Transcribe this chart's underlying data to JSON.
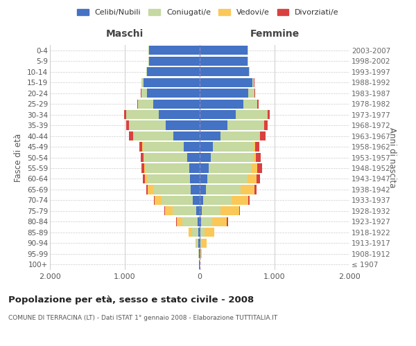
{
  "age_groups": [
    "100+",
    "95-99",
    "90-94",
    "85-89",
    "80-84",
    "75-79",
    "70-74",
    "65-69",
    "60-64",
    "55-59",
    "50-54",
    "45-49",
    "40-44",
    "35-39",
    "30-34",
    "25-29",
    "20-24",
    "15-19",
    "10-14",
    "5-9",
    "0-4"
  ],
  "birth_years": [
    "≤ 1907",
    "1908-1912",
    "1913-1917",
    "1918-1922",
    "1923-1927",
    "1928-1932",
    "1933-1937",
    "1938-1942",
    "1943-1947",
    "1948-1952",
    "1953-1957",
    "1958-1962",
    "1963-1967",
    "1968-1972",
    "1973-1977",
    "1978-1982",
    "1983-1987",
    "1988-1992",
    "1993-1997",
    "1998-2002",
    "2003-2007"
  ],
  "male_celibi": [
    5,
    10,
    15,
    20,
    30,
    50,
    90,
    120,
    130,
    140,
    170,
    210,
    350,
    450,
    550,
    620,
    700,
    750,
    700,
    680,
    680
  ],
  "male_coniugati": [
    2,
    8,
    30,
    80,
    200,
    310,
    420,
    500,
    560,
    580,
    570,
    550,
    530,
    490,
    430,
    200,
    80,
    30,
    10,
    5,
    5
  ],
  "male_vedovi": [
    1,
    5,
    15,
    50,
    80,
    100,
    90,
    70,
    40,
    20,
    10,
    5,
    5,
    5,
    3,
    2,
    1,
    0,
    0,
    0,
    0
  ],
  "male_divorziati": [
    0,
    0,
    0,
    2,
    5,
    10,
    15,
    20,
    30,
    35,
    40,
    45,
    55,
    40,
    30,
    10,
    5,
    2,
    1,
    0,
    0
  ],
  "female_celibi": [
    3,
    8,
    10,
    12,
    15,
    25,
    50,
    80,
    100,
    120,
    150,
    180,
    280,
    370,
    480,
    580,
    650,
    700,
    660,
    640,
    640
  ],
  "female_coniugati": [
    1,
    5,
    20,
    50,
    150,
    250,
    380,
    470,
    540,
    570,
    560,
    540,
    520,
    480,
    420,
    190,
    80,
    25,
    8,
    4,
    4
  ],
  "female_vedovi": [
    2,
    15,
    60,
    130,
    200,
    250,
    220,
    180,
    120,
    80,
    40,
    20,
    10,
    8,
    5,
    3,
    2,
    1,
    0,
    0,
    0
  ],
  "female_divorziati": [
    0,
    0,
    2,
    5,
    10,
    15,
    20,
    30,
    50,
    60,
    65,
    60,
    70,
    50,
    30,
    12,
    5,
    2,
    1,
    0,
    0
  ],
  "colors": {
    "celibi": "#4472c4",
    "coniugati": "#c5d9a0",
    "vedovi": "#fac858",
    "divorziati": "#d94040"
  },
  "title": "Popolazione per età, sesso e stato civile - 2008",
  "subtitle": "COMUNE DI TERRACINA (LT) - Dati ISTAT 1° gennaio 2008 - Elaborazione TUTTITALIA.IT",
  "ylabel_left": "Fasce di età",
  "ylabel_right": "Anni di nascita",
  "xlabel_maschi": "Maschi",
  "xlabel_femmine": "Femmine",
  "xlim": 2000,
  "background_color": "#ffffff",
  "grid_color": "#cccccc"
}
